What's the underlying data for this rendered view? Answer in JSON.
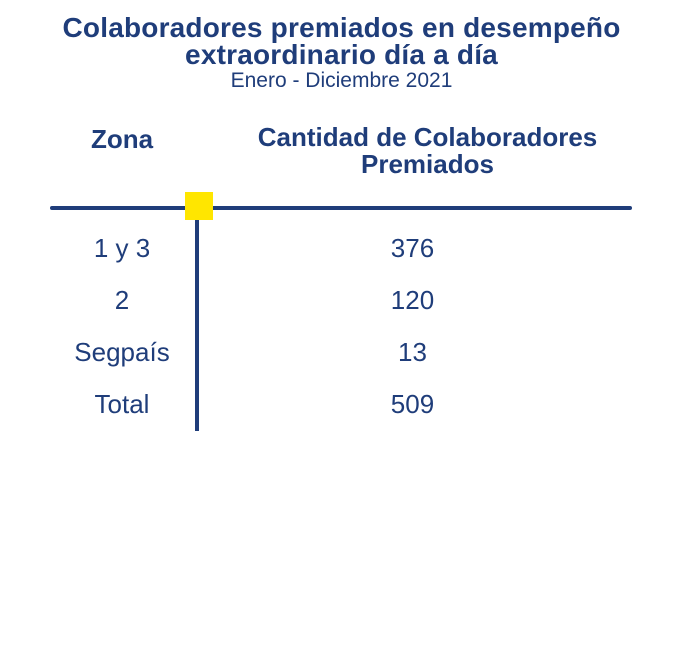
{
  "title": "Colaboradores premiados en desempeño\nextraordinario día a día",
  "subtitle": "Enero - Diciembre 2021",
  "colors": {
    "text": "#1f3d7a",
    "marker": "#ffe600",
    "background": "#ffffff"
  },
  "chart_data": {
    "type": "table",
    "title": "Colaboradores premiados en desempeño extraordinario día a día",
    "subtitle": "Enero - Diciembre 2021",
    "columns": [
      "Zona",
      "Cantidad de Colaboradores\nPremiados"
    ],
    "rows": [
      {
        "zona": "1 y 3",
        "cantidad": "376"
      },
      {
        "zona": "2",
        "cantidad": "120"
      },
      {
        "zona": "Segpaís",
        "cantidad": "13"
      },
      {
        "zona": "Total",
        "cantidad": "509"
      }
    ]
  }
}
